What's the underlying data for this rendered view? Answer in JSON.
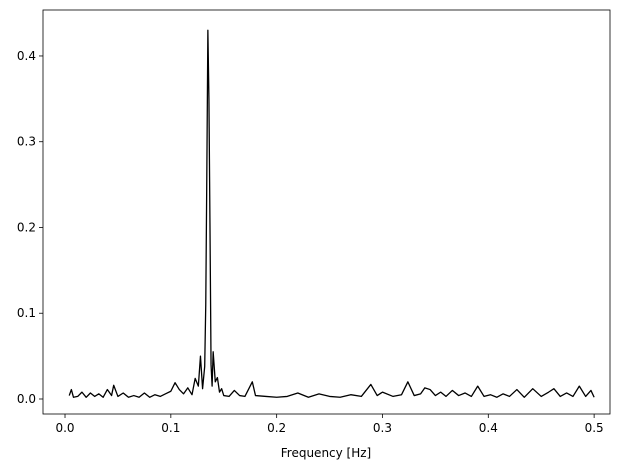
{
  "chart_data": {
    "type": "line",
    "x_label": "Frequency [Hz]",
    "color": "#000000",
    "grid": false,
    "x": [
      0.004,
      0.006,
      0.008,
      0.012,
      0.016,
      0.02,
      0.024,
      0.028,
      0.032,
      0.036,
      0.04,
      0.044,
      0.046,
      0.05,
      0.055,
      0.06,
      0.065,
      0.07,
      0.075,
      0.08,
      0.085,
      0.09,
      0.095,
      0.1,
      0.104,
      0.108,
      0.112,
      0.116,
      0.12,
      0.123,
      0.126,
      0.128,
      0.13,
      0.132,
      0.133,
      0.134,
      0.135,
      0.136,
      0.137,
      0.138,
      0.139,
      0.14,
      0.142,
      0.144,
      0.146,
      0.148,
      0.15,
      0.155,
      0.16,
      0.165,
      0.17,
      0.177,
      0.18,
      0.19,
      0.2,
      0.21,
      0.22,
      0.23,
      0.24,
      0.25,
      0.26,
      0.27,
      0.28,
      0.289,
      0.295,
      0.3,
      0.31,
      0.318,
      0.324,
      0.33,
      0.336,
      0.34,
      0.345,
      0.35,
      0.355,
      0.36,
      0.366,
      0.372,
      0.378,
      0.384,
      0.39,
      0.396,
      0.402,
      0.408,
      0.414,
      0.42,
      0.427,
      0.434,
      0.442,
      0.45,
      0.457,
      0.462,
      0.468,
      0.474,
      0.48,
      0.486,
      0.492,
      0.497,
      0.5
    ],
    "values": [
      0.004,
      0.011,
      0.002,
      0.003,
      0.008,
      0.002,
      0.007,
      0.003,
      0.006,
      0.002,
      0.011,
      0.004,
      0.016,
      0.003,
      0.007,
      0.002,
      0.004,
      0.002,
      0.007,
      0.002,
      0.005,
      0.003,
      0.006,
      0.009,
      0.019,
      0.011,
      0.006,
      0.013,
      0.005,
      0.024,
      0.015,
      0.05,
      0.012,
      0.038,
      0.11,
      0.26,
      0.43,
      0.35,
      0.2,
      0.04,
      0.015,
      0.055,
      0.02,
      0.025,
      0.008,
      0.012,
      0.004,
      0.003,
      0.01,
      0.004,
      0.003,
      0.02,
      0.004,
      0.003,
      0.002,
      0.003,
      0.007,
      0.002,
      0.006,
      0.003,
      0.002,
      0.005,
      0.003,
      0.017,
      0.004,
      0.008,
      0.003,
      0.005,
      0.02,
      0.004,
      0.006,
      0.013,
      0.011,
      0.004,
      0.008,
      0.003,
      0.01,
      0.004,
      0.007,
      0.003,
      0.015,
      0.003,
      0.005,
      0.002,
      0.006,
      0.003,
      0.011,
      0.002,
      0.012,
      0.003,
      0.008,
      0.012,
      0.003,
      0.007,
      0.003,
      0.015,
      0.003,
      0.01,
      0.002
    ],
    "xlim": [
      -0.0208,
      0.515
    ],
    "xticks": [
      {
        "value": 0,
        "label": "0.0"
      },
      0.1,
      0.2,
      0.3,
      0.4,
      0.5
    ],
    "ylim": [
      -0.0175,
      0.4536
    ],
    "yticks": [
      {
        "value": 0,
        "label": "0.0"
      },
      0.1,
      0.2,
      0.3,
      0.4
    ]
  }
}
